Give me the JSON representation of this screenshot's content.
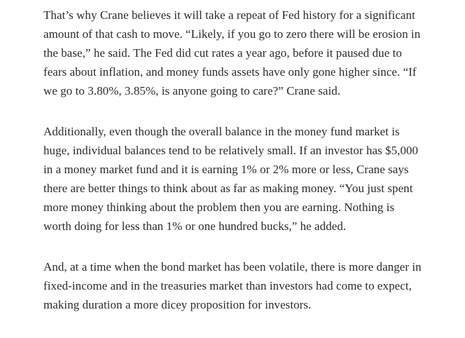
{
  "paragraphs": [
    {
      "lines": [
        "That’s why Crane believes it will take a repeat of Fed history for a significant",
        "amount of that cash to move. “Likely, if you go to zero there will be erosion in",
        "the base,” he said. The Fed did cut rates a year ago, before it paused due to",
        "fears about inflation, and money funds assets have only gone higher since. “If",
        "we go to 3.80%, 3.85%, is anyone going to care?” Crane said."
      ]
    },
    {
      "lines": [
        "Additionally, even though the overall balance in the money fund market is",
        "huge, individual balances tend to be relatively small. If an investor has $5,000",
        "in a money market fund and it is earning 1% or 2% more or less, Crane says",
        "there are better things to think about as far as making money. “You just spent",
        "more money thinking about the problem then you are earning. Nothing is",
        "worth doing for less than 1% or one hundred bucks,” he added."
      ]
    },
    {
      "lines": [
        "And, at a time when the bond market has been volatile, there is more danger in",
        "fixed-income and in the treasuries market than investors had come to expect,",
        "making duration a more dicey proposition for investors."
      ]
    }
  ]
}
